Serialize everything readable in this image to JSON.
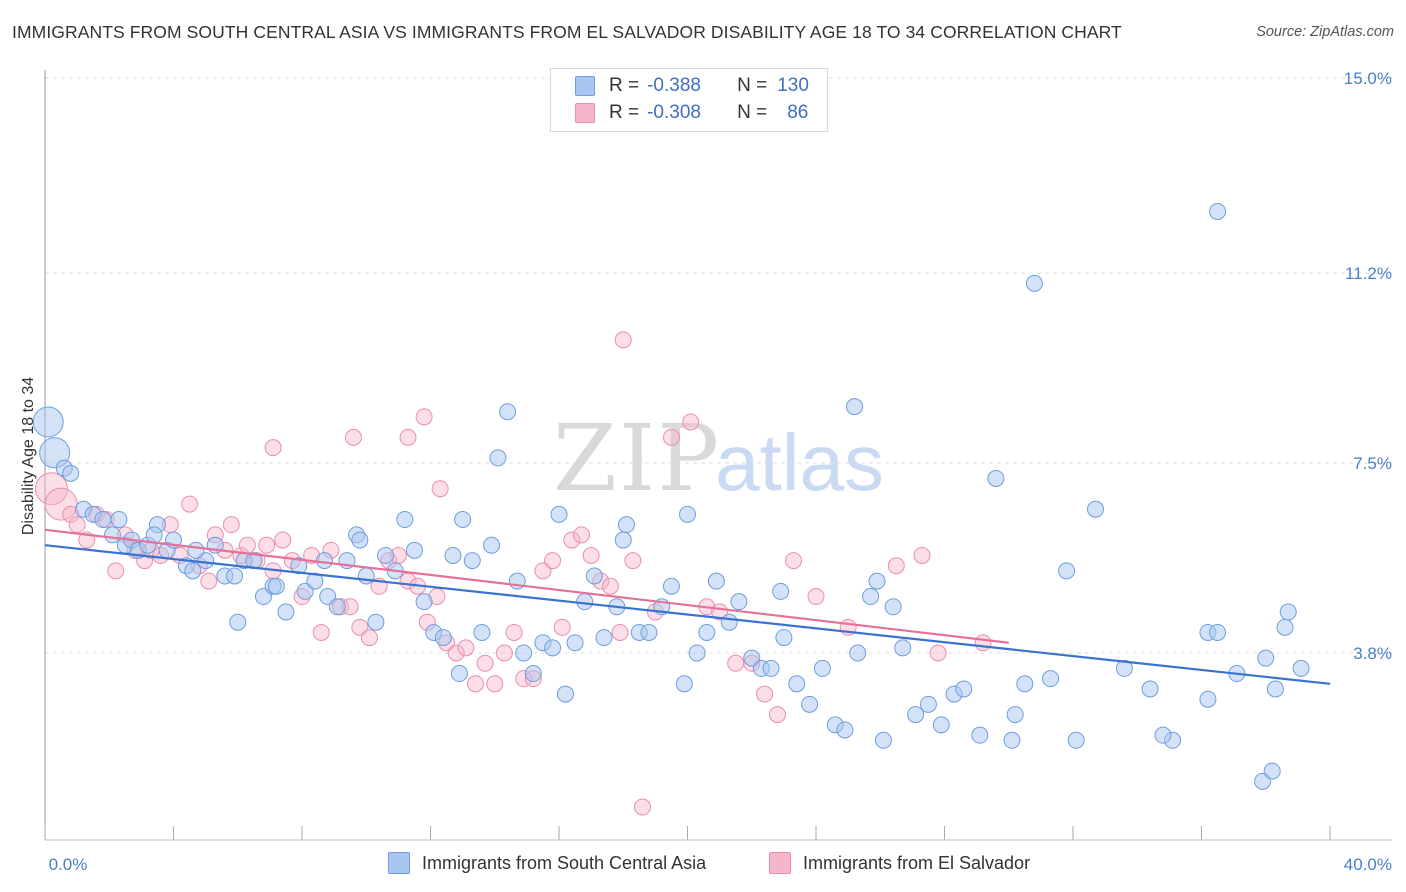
{
  "header": {
    "title": "IMMIGRANTS FROM SOUTH CENTRAL ASIA VS IMMIGRANTS FROM EL SALVADOR DISABILITY AGE 18 TO 34 CORRELATION CHART",
    "source": "Source: ZipAtlas.com"
  },
  "legend_top": {
    "rows": [
      {
        "r_label": "R =",
        "r_value": "-0.388",
        "n_label": "N =",
        "n_value": "130"
      },
      {
        "r_label": "R =",
        "r_value": "-0.308",
        "n_label": "N =",
        "n_value": "86"
      }
    ]
  },
  "watermark": {
    "zip": "ZIP",
    "atlas": "atlas"
  },
  "chart_data": {
    "type": "scatter",
    "xlabel": "",
    "ylabel": "Disability Age 18 to 34",
    "xlim": [
      0,
      40
    ],
    "ylim": [
      0,
      15.5
    ],
    "x_tick_labels": [
      "0.0%",
      "40.0%"
    ],
    "y_ticks": [
      3.8,
      7.5,
      11.2,
      15.0
    ],
    "y_tick_labels": [
      "3.8%",
      "7.5%",
      "11.2%",
      "15.0%"
    ],
    "grid": "horizontal dashed",
    "legend_position": "top-center",
    "colors": {
      "south_central_asia_fill": "#a9c6f0",
      "south_central_asia_stroke": "#6d9ee0",
      "south_central_asia_line": "#3a73cf",
      "el_salvador_fill": "#f6b6c9",
      "el_salvador_stroke": "#ec8eab",
      "el_salvador_line": "#e5709a",
      "tick_text": "#4a7fc7"
    },
    "series": [
      {
        "name": "Immigrants from South Central Asia",
        "trend": {
          "x": [
            0,
            40
          ],
          "y": [
            5.9,
            3.2
          ]
        },
        "points": [
          [
            0.1,
            8.3
          ],
          [
            0.3,
            7.7
          ],
          [
            0.6,
            7.4
          ],
          [
            0.8,
            7.3
          ],
          [
            1.2,
            6.6
          ],
          [
            1.5,
            6.5
          ],
          [
            1.8,
            6.4
          ],
          [
            2.1,
            6.1
          ],
          [
            2.5,
            5.9
          ],
          [
            2.7,
            6.0
          ],
          [
            2.9,
            5.8
          ],
          [
            3.2,
            5.9
          ],
          [
            3.5,
            6.3
          ],
          [
            3.8,
            5.8
          ],
          [
            4.0,
            6.0
          ],
          [
            4.4,
            5.5
          ],
          [
            4.6,
            5.4
          ],
          [
            5.0,
            5.6
          ],
          [
            5.3,
            5.9
          ],
          [
            5.6,
            5.3
          ],
          [
            5.9,
            5.3
          ],
          [
            6.2,
            5.6
          ],
          [
            6.5,
            5.6
          ],
          [
            6.8,
            4.9
          ],
          [
            7.1,
            5.1
          ],
          [
            7.5,
            4.6
          ],
          [
            7.9,
            5.5
          ],
          [
            8.1,
            5.0
          ],
          [
            8.4,
            5.2
          ],
          [
            8.8,
            4.9
          ],
          [
            9.1,
            4.7
          ],
          [
            9.4,
            5.6
          ],
          [
            9.7,
            6.1
          ],
          [
            10.0,
            5.3
          ],
          [
            10.3,
            4.4
          ],
          [
            10.6,
            5.7
          ],
          [
            10.9,
            5.4
          ],
          [
            11.2,
            6.4
          ],
          [
            11.5,
            5.8
          ],
          [
            11.8,
            4.8
          ],
          [
            12.1,
            4.2
          ],
          [
            12.4,
            4.1
          ],
          [
            12.7,
            5.7
          ],
          [
            13.0,
            6.4
          ],
          [
            13.3,
            5.6
          ],
          [
            13.6,
            4.2
          ],
          [
            13.9,
            5.9
          ],
          [
            14.1,
            7.6
          ],
          [
            14.4,
            8.5
          ],
          [
            14.7,
            5.2
          ],
          [
            14.9,
            3.8
          ],
          [
            15.2,
            3.4
          ],
          [
            15.5,
            4.0
          ],
          [
            15.8,
            3.9
          ],
          [
            16.2,
            3.0
          ],
          [
            16.5,
            4.0
          ],
          [
            16.8,
            4.8
          ],
          [
            17.1,
            5.3
          ],
          [
            17.4,
            4.1
          ],
          [
            17.8,
            4.7
          ],
          [
            18.1,
            6.3
          ],
          [
            18.5,
            4.2
          ],
          [
            18.8,
            4.2
          ],
          [
            19.2,
            4.7
          ],
          [
            19.5,
            5.1
          ],
          [
            19.9,
            3.2
          ],
          [
            20.3,
            3.8
          ],
          [
            20.6,
            4.2
          ],
          [
            20.9,
            5.2
          ],
          [
            21.3,
            4.4
          ],
          [
            21.6,
            4.8
          ],
          [
            22.0,
            3.7
          ],
          [
            22.3,
            3.5
          ],
          [
            22.6,
            3.5
          ],
          [
            23.0,
            4.1
          ],
          [
            23.4,
            3.2
          ],
          [
            23.8,
            2.8
          ],
          [
            24.2,
            3.5
          ],
          [
            24.6,
            2.4
          ],
          [
            24.9,
            2.3
          ],
          [
            25.3,
            3.8
          ],
          [
            25.7,
            4.9
          ],
          [
            26.1,
            2.1
          ],
          [
            26.4,
            4.7
          ],
          [
            26.7,
            3.9
          ],
          [
            27.1,
            2.6
          ],
          [
            27.5,
            2.8
          ],
          [
            27.9,
            2.4
          ],
          [
            28.3,
            3.0
          ],
          [
            28.6,
            3.1
          ],
          [
            29.1,
            2.2
          ],
          [
            29.6,
            7.2
          ],
          [
            30.2,
            2.6
          ],
          [
            30.5,
            3.2
          ],
          [
            31.3,
            3.3
          ],
          [
            31.8,
            5.4
          ],
          [
            32.1,
            2.1
          ],
          [
            33.6,
            3.5
          ],
          [
            34.4,
            3.1
          ],
          [
            35.1,
            2.1
          ],
          [
            36.2,
            4.2
          ],
          [
            36.5,
            4.2
          ],
          [
            37.1,
            3.4
          ],
          [
            38.0,
            3.7
          ],
          [
            38.7,
            4.6
          ],
          [
            25.2,
            8.6
          ],
          [
            25.9,
            5.2
          ],
          [
            30.8,
            11.0
          ],
          [
            36.5,
            12.4
          ],
          [
            38.3,
            3.1
          ],
          [
            38.6,
            4.3
          ],
          [
            36.2,
            2.9
          ],
          [
            32.7,
            6.6
          ],
          [
            37.9,
            1.3
          ],
          [
            38.2,
            1.5
          ],
          [
            39.1,
            3.5
          ],
          [
            30.1,
            2.1
          ],
          [
            34.8,
            2.2
          ],
          [
            22.9,
            5.0
          ],
          [
            20.0,
            6.5
          ],
          [
            18.0,
            6.0
          ],
          [
            12.9,
            3.4
          ],
          [
            8.7,
            5.6
          ],
          [
            7.2,
            5.1
          ],
          [
            9.8,
            6.0
          ],
          [
            6.0,
            4.4
          ],
          [
            4.7,
            5.8
          ],
          [
            3.4,
            6.1
          ],
          [
            2.3,
            6.4
          ],
          [
            16.0,
            6.5
          ]
        ]
      },
      {
        "name": "Immigrants from El Salvador",
        "trend": {
          "x": [
            0,
            30
          ],
          "y": [
            6.2,
            4.0
          ]
        },
        "points": [
          [
            0.2,
            7.0
          ],
          [
            0.5,
            6.7
          ],
          [
            0.8,
            6.5
          ],
          [
            1.0,
            6.3
          ],
          [
            1.3,
            6.0
          ],
          [
            1.6,
            6.5
          ],
          [
            1.9,
            6.4
          ],
          [
            2.2,
            5.4
          ],
          [
            2.5,
            6.1
          ],
          [
            2.8,
            5.8
          ],
          [
            3.1,
            5.6
          ],
          [
            3.3,
            5.8
          ],
          [
            3.6,
            5.7
          ],
          [
            3.9,
            6.3
          ],
          [
            4.2,
            5.7
          ],
          [
            4.5,
            6.7
          ],
          [
            4.8,
            5.5
          ],
          [
            5.1,
            5.2
          ],
          [
            5.3,
            6.1
          ],
          [
            5.6,
            5.8
          ],
          [
            5.8,
            6.3
          ],
          [
            6.1,
            5.7
          ],
          [
            6.3,
            5.9
          ],
          [
            6.6,
            5.6
          ],
          [
            6.9,
            5.9
          ],
          [
            7.1,
            5.4
          ],
          [
            7.4,
            6.0
          ],
          [
            7.7,
            5.6
          ],
          [
            8.0,
            4.9
          ],
          [
            8.3,
            5.7
          ],
          [
            8.6,
            4.2
          ],
          [
            8.9,
            5.8
          ],
          [
            9.2,
            4.7
          ],
          [
            9.5,
            4.7
          ],
          [
            9.8,
            4.3
          ],
          [
            10.1,
            4.1
          ],
          [
            10.4,
            5.1
          ],
          [
            10.7,
            5.6
          ],
          [
            11.0,
            5.7
          ],
          [
            11.3,
            5.2
          ],
          [
            11.6,
            5.1
          ],
          [
            11.9,
            4.4
          ],
          [
            12.2,
            4.9
          ],
          [
            12.5,
            4.0
          ],
          [
            12.8,
            3.8
          ],
          [
            13.1,
            3.9
          ],
          [
            13.4,
            3.2
          ],
          [
            13.7,
            3.6
          ],
          [
            14.0,
            3.2
          ],
          [
            14.3,
            3.8
          ],
          [
            14.6,
            4.2
          ],
          [
            14.9,
            3.3
          ],
          [
            15.2,
            3.3
          ],
          [
            15.5,
            5.4
          ],
          [
            15.8,
            5.6
          ],
          [
            16.1,
            4.3
          ],
          [
            16.4,
            6.0
          ],
          [
            16.7,
            6.1
          ],
          [
            17.0,
            5.7
          ],
          [
            17.3,
            5.2
          ],
          [
            17.6,
            5.1
          ],
          [
            17.9,
            4.2
          ],
          [
            18.3,
            5.6
          ],
          [
            18.6,
            0.8
          ],
          [
            19.0,
            4.6
          ],
          [
            19.5,
            8.0
          ],
          [
            20.1,
            8.3
          ],
          [
            20.6,
            4.7
          ],
          [
            21.0,
            4.6
          ],
          [
            21.5,
            3.6
          ],
          [
            22.0,
            3.6
          ],
          [
            22.4,
            3.0
          ],
          [
            22.8,
            2.6
          ],
          [
            23.3,
            5.6
          ],
          [
            24.0,
            4.9
          ],
          [
            25.0,
            4.3
          ],
          [
            26.5,
            5.5
          ],
          [
            27.3,
            5.7
          ],
          [
            27.8,
            3.8
          ],
          [
            29.2,
            4.0
          ],
          [
            18.0,
            9.9
          ],
          [
            9.6,
            8.0
          ],
          [
            11.8,
            8.4
          ],
          [
            11.3,
            8.0
          ],
          [
            7.1,
            7.8
          ],
          [
            12.3,
            7.0
          ]
        ]
      }
    ]
  },
  "bottom_legend": [
    {
      "label": "Immigrants from South Central Asia"
    },
    {
      "label": "Immigrants from El Salvador"
    }
  ]
}
